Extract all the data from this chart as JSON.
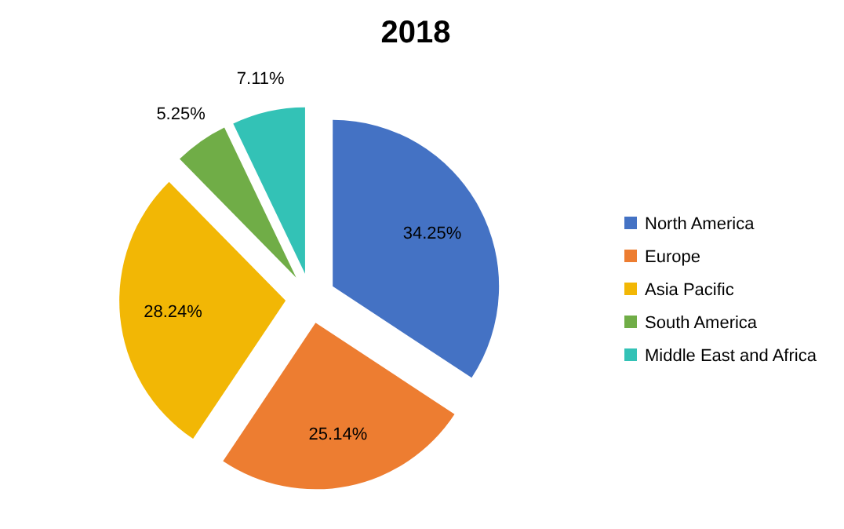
{
  "chart_data": {
    "type": "pie",
    "title": "2018",
    "categories": [
      "North America",
      "Europe",
      "Asia Pacific",
      "South America",
      "Middle East and Africa"
    ],
    "values": [
      34.25,
      25.14,
      28.24,
      5.25,
      7.11
    ],
    "colors": [
      "#4472c4",
      "#ed7d31",
      "#f2b705",
      "#70ad47",
      "#33c2b6"
    ],
    "value_labels": [
      "34.25%",
      "25.14%",
      "28.24%",
      "5.25%",
      "7.11%"
    ],
    "legend": "right"
  }
}
